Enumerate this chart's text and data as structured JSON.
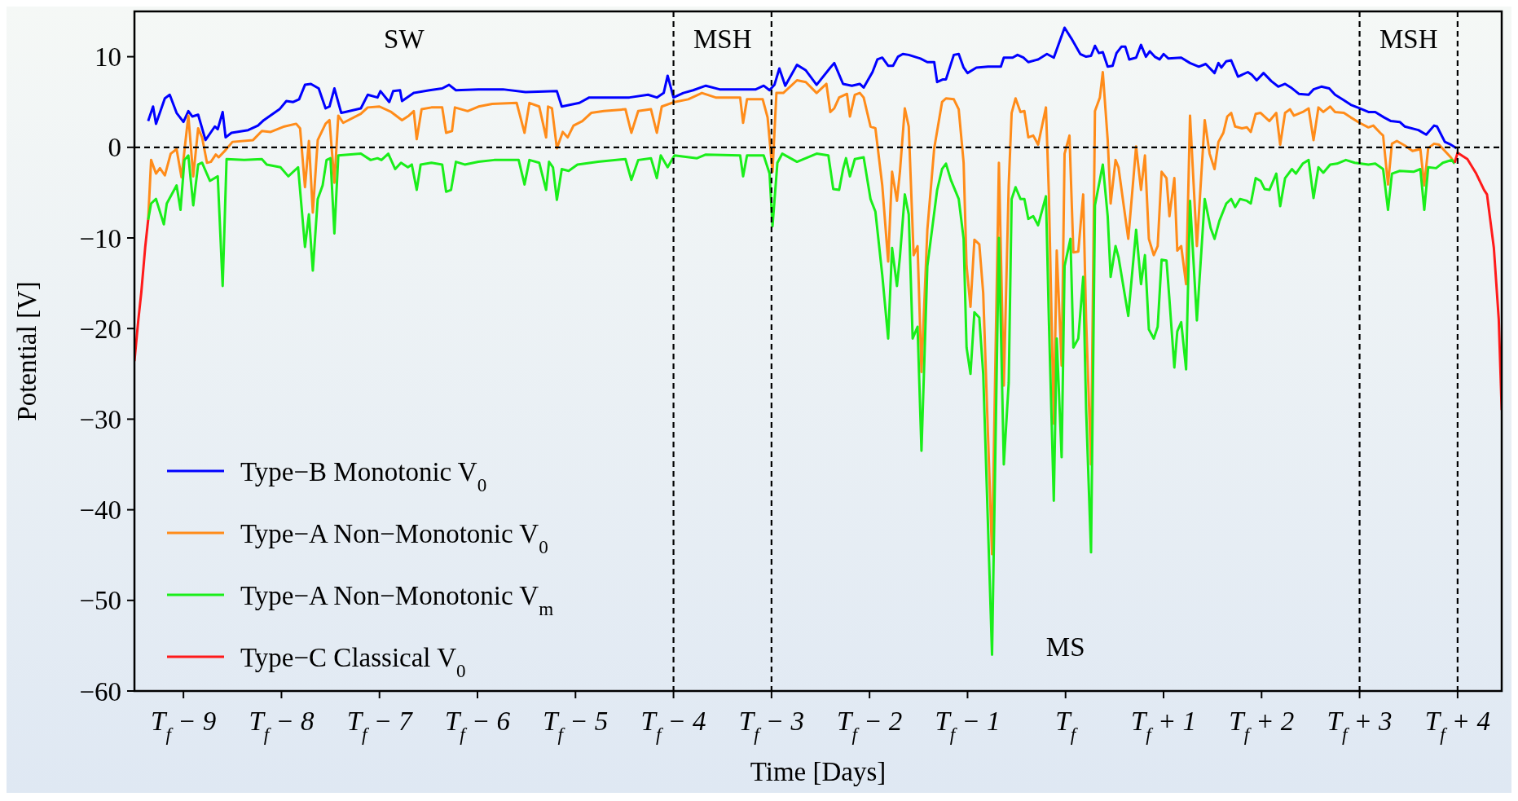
{
  "chart_data": {
    "type": "line",
    "xlabel": "Time [Days]",
    "ylabel": "Potential [V]",
    "xlim": [
      -9.5,
      4.45
    ],
    "ylim": [
      -60,
      15
    ],
    "xticks": [
      {
        "value": -9,
        "label": "T$_{f}$ − 9"
      },
      {
        "value": -8,
        "label": "T$_{f}$ − 8"
      },
      {
        "value": -7,
        "label": "T$_{f}$ − 7"
      },
      {
        "value": -6,
        "label": "T$_{f}$ − 6"
      },
      {
        "value": -5,
        "label": "T$_{f}$ − 5"
      },
      {
        "value": -4,
        "label": "T$_{f}$ − 4"
      },
      {
        "value": -3,
        "label": "T$_{f}$ − 3"
      },
      {
        "value": -2,
        "label": "T$_{f}$ − 2"
      },
      {
        "value": -1,
        "label": "T$_{f}$ − 1"
      },
      {
        "value": 0,
        "label": "T$_{f}$"
      },
      {
        "value": 1,
        "label": "T$_{f}$ + 1"
      },
      {
        "value": 2,
        "label": "T$_{f}$ + 2"
      },
      {
        "value": 3,
        "label": "T$_{f}$ + 3"
      },
      {
        "value": 4,
        "label": "T$_{f}$ + 4"
      }
    ],
    "yticks": [
      {
        "value": -60,
        "label": "−60"
      },
      {
        "value": -50,
        "label": "−50"
      },
      {
        "value": -40,
        "label": "−40"
      },
      {
        "value": -30,
        "label": "−30"
      },
      {
        "value": -20,
        "label": "−20"
      },
      {
        "value": -10,
        "label": "−10"
      },
      0,
      10
    ],
    "legend": "bottom left",
    "grid": false,
    "line_style": "solid",
    "marker": "none",
    "ref_lines": [
      {
        "axis": "y",
        "value": 0,
        "color": "#000000",
        "line_style": "dashed"
      },
      {
        "axis": "x",
        "value": -4,
        "color": "#000000",
        "line_style": "dashed"
      },
      {
        "axis": "x",
        "value": -3,
        "color": "#000000",
        "line_style": "dashed"
      },
      {
        "axis": "x",
        "value": 3,
        "color": "#000000",
        "line_style": "dashed"
      },
      {
        "axis": "x",
        "value": 4,
        "color": "#000000",
        "line_style": "dashed"
      }
    ],
    "annotations": [
      "SW",
      "MSH",
      "MS",
      "MSH"
    ],
    "series": [
      {
        "name": "Type−B Monotonic V$_{0}$",
        "color": "#0000ff",
        "x": [
          -9.36,
          -9.31,
          -9.28,
          -9.19,
          -9.14,
          -9.07,
          -9.0,
          -8.95,
          -8.91,
          -8.85,
          -8.775,
          -8.68,
          -8.65,
          -8.6,
          -8.57,
          -8.51,
          -8.34,
          -8.24,
          -8.18,
          -8.02,
          -7.95,
          -7.88,
          -7.82,
          -7.76,
          -7.7,
          -7.62,
          -7.55,
          -7.51,
          -7.46,
          -7.39,
          -7.35,
          -7.19,
          -7.12,
          -7.02,
          -6.99,
          -6.9,
          -6.86,
          -6.79,
          -6.77,
          -6.65,
          -6.49,
          -6.36,
          -6.29,
          -6.22,
          -5.99,
          -5.85,
          -5.74,
          -5.51,
          -5.19,
          -5.14,
          -5.05,
          -4.96,
          -4.86,
          -4.68,
          -4.45,
          -4.26,
          -4.17,
          -4.1,
          -4.06,
          -4.0,
          -3.9,
          -3.8,
          -3.67,
          -3.53,
          -3.3,
          -3.16,
          -3.08,
          -3.02,
          -2.97,
          -2.92,
          -2.86,
          -2.74,
          -2.65,
          -2.54,
          -2.4,
          -2.36,
          -2.27,
          -2.18,
          -2.1,
          -2.06,
          -1.97,
          -1.92,
          -1.87,
          -1.81,
          -1.76,
          -1.71,
          -1.66,
          -1.6,
          -1.48,
          -1.41,
          -1.34,
          -1.31,
          -1.25,
          -1.22,
          -1.14,
          -1.09,
          -1.04,
          -1.0,
          -0.91,
          -0.79,
          -0.66,
          -0.63,
          -0.54,
          -0.49,
          -0.43,
          -0.38,
          -0.28,
          -0.19,
          -0.12,
          -0.01,
          0.06,
          0.15,
          0.21,
          0.26,
          0.3,
          0.34,
          0.38,
          0.43,
          0.48,
          0.52,
          0.57,
          0.61,
          0.65,
          0.72,
          0.77,
          0.82,
          0.86,
          0.91,
          0.96,
          1.0,
          1.05,
          1.18,
          1.27,
          1.36,
          1.43,
          1.52,
          1.56,
          1.59,
          1.64,
          1.69,
          1.76,
          1.86,
          1.9,
          1.95,
          2.02,
          2.1,
          2.17,
          2.24,
          2.3,
          2.38,
          2.48,
          2.53,
          2.61,
          2.69,
          2.75,
          2.84,
          2.91,
          3.0,
          3.09,
          3.16,
          3.25,
          3.32,
          3.41,
          3.46,
          3.6,
          3.68,
          3.76,
          3.79,
          3.87,
          3.93,
          3.99
        ],
        "values": [
          2.9,
          4.5,
          2.6,
          5.4,
          5.8,
          3.8,
          2.8,
          4.0,
          3.4,
          3.6,
          0.8,
          2.3,
          2.0,
          3.9,
          1.1,
          1.6,
          1.9,
          2.4,
          3.0,
          4.2,
          5.1,
          5.0,
          5.3,
          6.9,
          7.0,
          6.5,
          4.3,
          4.5,
          6.5,
          3.8,
          3.9,
          4.3,
          5.8,
          5.5,
          6.2,
          5.0,
          6.2,
          6.3,
          5.1,
          6.0,
          6.3,
          6.5,
          6.9,
          6.3,
          6.4,
          6.4,
          6.4,
          6.1,
          6.2,
          4.5,
          4.7,
          4.9,
          5.5,
          5.5,
          5.5,
          5.8,
          5.5,
          6.0,
          7.9,
          5.5,
          6.0,
          6.3,
          6.8,
          6.4,
          6.4,
          6.4,
          6.8,
          6.3,
          6.9,
          8.7,
          6.8,
          9.1,
          8.5,
          6.9,
          8.8,
          9.3,
          7.0,
          6.8,
          7.0,
          6.6,
          8.3,
          9.7,
          9.9,
          9.0,
          9.0,
          10.0,
          10.3,
          10.2,
          9.8,
          9.4,
          9.4,
          7.2,
          7.5,
          7.5,
          10.2,
          10.3,
          8.8,
          8.2,
          8.8,
          8.9,
          8.9,
          9.9,
          9.9,
          10.2,
          9.9,
          9.4,
          9.7,
          10.3,
          9.9,
          13.2,
          12.0,
          10.3,
          10.0,
          10.1,
          11.2,
          10.4,
          10.5,
          8.9,
          9.0,
          10.4,
          11.1,
          11.1,
          9.7,
          9.9,
          11.3,
          10.0,
          10.6,
          10.0,
          9.7,
          10.3,
          9.8,
          9.9,
          9.3,
          8.9,
          9.2,
          8.2,
          9.3,
          8.8,
          9.5,
          9.6,
          7.8,
          8.3,
          8.0,
          7.4,
          8.2,
          7.3,
          6.7,
          7.0,
          6.6,
          5.9,
          5.8,
          6.4,
          6.7,
          6.5,
          5.8,
          5.2,
          4.7,
          4.3,
          3.9,
          3.9,
          3.3,
          2.9,
          2.8,
          2.3,
          1.9,
          1.4,
          2.4,
          2.3,
          0.6,
          0.3,
          -0.1
        ]
      },
      {
        "name": "Type−A Non−Monotonic V$_{0}$",
        "color": "#ff8c1a",
        "x": [
          -9.36,
          -9.33,
          -9.28,
          -9.24,
          -9.19,
          -9.13,
          -9.07,
          -9.02,
          -8.95,
          -8.9,
          -8.85,
          -8.81,
          -8.76,
          -8.72,
          -8.67,
          -8.64,
          -8.57,
          -8.5,
          -8.29,
          -8.2,
          -8.11,
          -7.97,
          -7.85,
          -7.81,
          -7.76,
          -7.72,
          -7.68,
          -7.63,
          -7.55,
          -7.51,
          -7.46,
          -7.42,
          -7.37,
          -7.19,
          -7.12,
          -7.0,
          -6.88,
          -6.77,
          -6.7,
          -6.65,
          -6.62,
          -6.57,
          -6.47,
          -6.36,
          -6.32,
          -6.26,
          -6.23,
          -6.1,
          -5.99,
          -5.85,
          -5.6,
          -5.52,
          -5.47,
          -5.37,
          -5.3,
          -5.28,
          -5.24,
          -5.19,
          -5.13,
          -5.08,
          -5.02,
          -4.93,
          -4.84,
          -4.71,
          -4.49,
          -4.43,
          -4.36,
          -4.23,
          -4.17,
          -4.12,
          -3.99,
          -3.85,
          -3.71,
          -3.57,
          -3.32,
          -3.29,
          -3.25,
          -3.09,
          -3.04,
          -2.99,
          -2.95,
          -2.88,
          -2.74,
          -2.65,
          -2.54,
          -2.44,
          -2.4,
          -2.36,
          -2.31,
          -2.23,
          -2.2,
          -2.15,
          -2.1,
          -2.06,
          -1.99,
          -1.94,
          -1.87,
          -1.81,
          -1.77,
          -1.72,
          -1.69,
          -1.64,
          -1.6,
          -1.55,
          -1.51,
          -1.47,
          -1.41,
          -1.34,
          -1.26,
          -1.22,
          -1.14,
          -1.09,
          -1.04,
          -1.01,
          -0.97,
          -0.93,
          -0.88,
          -0.84,
          -0.8,
          -0.75,
          -0.68,
          -0.63,
          -0.58,
          -0.55,
          -0.51,
          -0.46,
          -0.42,
          -0.38,
          -0.33,
          -0.28,
          -0.2,
          -0.17,
          -0.12,
          -0.09,
          -0.04,
          -0.01,
          0.04,
          0.08,
          0.13,
          0.18,
          0.21,
          0.26,
          0.3,
          0.35,
          0.38,
          0.43,
          0.46,
          0.51,
          0.54,
          0.64,
          0.72,
          0.77,
          0.81,
          0.85,
          0.9,
          0.94,
          0.98,
          1.03,
          1.06,
          1.11,
          1.14,
          1.18,
          1.23,
          1.27,
          1.34,
          1.42,
          1.47,
          1.52,
          1.56,
          1.61,
          1.65,
          1.69,
          1.73,
          1.8,
          1.85,
          1.89,
          1.94,
          1.99,
          2.08,
          2.15,
          2.19,
          2.24,
          2.29,
          2.33,
          2.42,
          2.48,
          2.53,
          2.58,
          2.63,
          2.7,
          2.75,
          2.84,
          2.91,
          3.0,
          3.09,
          3.14,
          3.21,
          3.24,
          3.29,
          3.33,
          3.38,
          3.46,
          3.54,
          3.62,
          3.66,
          3.7,
          3.76,
          3.81,
          3.87,
          3.93,
          3.97
        ],
        "values": [
          -8.0,
          -1.4,
          -2.9,
          -2.3,
          -3.1,
          -0.7,
          -0.2,
          -3.3,
          3.5,
          -3.2,
          2.1,
          1.1,
          -1.7,
          -1.6,
          -0.8,
          -1.1,
          -0.3,
          0.6,
          0.8,
          1.8,
          1.7,
          2.3,
          2.6,
          2.1,
          -4.4,
          0.7,
          -7.2,
          0.8,
          2.6,
          3.0,
          -3.9,
          3.5,
          2.7,
          3.7,
          4.4,
          4.5,
          3.9,
          3.0,
          3.5,
          4.0,
          0.9,
          4.2,
          4.4,
          4.4,
          1.6,
          1.8,
          4.4,
          4.0,
          4.5,
          4.8,
          4.9,
          1.6,
          4.9,
          4.5,
          1.1,
          4.5,
          4.3,
          -0.1,
          1.7,
          1.1,
          2.4,
          2.9,
          3.8,
          4.0,
          4.2,
          1.6,
          4.0,
          4.2,
          1.6,
          4.5,
          5.0,
          5.3,
          6.0,
          5.5,
          5.5,
          2.7,
          5.3,
          5.3,
          3.3,
          -2.7,
          6.0,
          6.0,
          7.4,
          7.2,
          6.0,
          7.0,
          3.9,
          4.3,
          5.5,
          5.9,
          3.4,
          5.8,
          6.0,
          5.5,
          2.3,
          2.1,
          -4.2,
          -12.6,
          -2.7,
          -5.9,
          -2.7,
          4.3,
          2.3,
          -11.9,
          -10.9,
          -24.8,
          -9.1,
          -0.1,
          5.0,
          5.4,
          5.3,
          4.2,
          -1.7,
          -13.1,
          -17.6,
          -10.2,
          -10.7,
          -16.1,
          -29.0,
          -44.9,
          -1.7,
          -26.3,
          -4.2,
          3.8,
          5.4,
          3.9,
          4.0,
          1.1,
          1.3,
          0.3,
          4.4,
          -5.2,
          -30.5,
          -11.4,
          -24.1,
          -0.7,
          1.3,
          -11.6,
          -11.5,
          -5.2,
          -19.1,
          -35.0,
          4.0,
          5.5,
          8.3,
          0.8,
          -6.2,
          -1.4,
          -2.2,
          -10.1,
          0.1,
          -4.7,
          -0.9,
          -10.1,
          -11.9,
          -10.9,
          -2.7,
          -3.4,
          -7.6,
          -3.4,
          -11.4,
          -10.9,
          -15.1,
          3.5,
          -10.9,
          3.0,
          -0.7,
          -2.4,
          0.6,
          1.6,
          3.4,
          3.8,
          2.3,
          2.1,
          2.2,
          1.7,
          3.7,
          3.8,
          2.9,
          3.8,
          0.3,
          3.8,
          4.2,
          3.5,
          3.9,
          4.3,
          0.8,
          4.4,
          3.9,
          4.5,
          3.9,
          3.8,
          3.3,
          2.7,
          2.2,
          2.4,
          1.6,
          1.3,
          -4.1,
          0.4,
          0.7,
          0.2,
          -0.4,
          -0.2,
          -4.2,
          -0.1,
          0.4,
          0.3,
          -0.4,
          -1.1,
          -1.7
        ]
      },
      {
        "name": "Type−A Non−Monotonic V$_{m}$",
        "color": "#1aee1a",
        "x": [
          -9.36,
          -9.33,
          -9.28,
          -9.2,
          -9.17,
          -9.07,
          -9.03,
          -8.99,
          -8.95,
          -8.9,
          -8.85,
          -8.81,
          -8.73,
          -8.65,
          -8.6,
          -8.56,
          -8.38,
          -8.2,
          -8.15,
          -8.01,
          -7.93,
          -7.83,
          -7.76,
          -7.72,
          -7.68,
          -7.63,
          -7.58,
          -7.54,
          -7.5,
          -7.46,
          -7.42,
          -7.19,
          -7.09,
          -7.02,
          -6.98,
          -6.91,
          -6.84,
          -6.78,
          -6.71,
          -6.67,
          -6.62,
          -6.58,
          -6.47,
          -6.36,
          -6.32,
          -6.27,
          -6.22,
          -6.13,
          -5.99,
          -5.83,
          -5.58,
          -5.52,
          -5.47,
          -5.37,
          -5.3,
          -5.27,
          -5.23,
          -5.19,
          -5.14,
          -5.07,
          -4.98,
          -4.77,
          -4.49,
          -4.43,
          -4.36,
          -4.23,
          -4.17,
          -4.13,
          -4.06,
          -3.99,
          -3.76,
          -3.67,
          -3.32,
          -3.29,
          -3.25,
          -3.08,
          -3.02,
          -2.99,
          -2.94,
          -2.89,
          -2.74,
          -2.54,
          -2.42,
          -2.37,
          -2.31,
          -2.27,
          -2.24,
          -2.2,
          -2.15,
          -2.06,
          -1.99,
          -1.94,
          -1.87,
          -1.81,
          -1.77,
          -1.72,
          -1.69,
          -1.64,
          -1.6,
          -1.56,
          -1.51,
          -1.47,
          -1.41,
          -1.31,
          -1.26,
          -1.22,
          -1.17,
          -1.09,
          -1.04,
          -1.01,
          -0.97,
          -0.93,
          -0.88,
          -0.84,
          -0.75,
          -0.68,
          -0.63,
          -0.58,
          -0.55,
          -0.51,
          -0.46,
          -0.42,
          -0.38,
          -0.33,
          -0.28,
          -0.2,
          -0.17,
          -0.12,
          -0.09,
          -0.04,
          -0.01,
          0.05,
          0.08,
          0.13,
          0.18,
          0.21,
          0.26,
          0.3,
          0.38,
          0.43,
          0.46,
          0.51,
          0.54,
          0.64,
          0.72,
          0.77,
          0.81,
          0.85,
          0.9,
          0.94,
          0.98,
          1.03,
          1.06,
          1.11,
          1.14,
          1.18,
          1.23,
          1.27,
          1.34,
          1.42,
          1.48,
          1.52,
          1.57,
          1.64,
          1.69,
          1.73,
          1.78,
          1.85,
          1.89,
          1.94,
          1.99,
          2.03,
          2.08,
          2.15,
          2.19,
          2.24,
          2.31,
          2.35,
          2.42,
          2.48,
          2.53,
          2.58,
          2.63,
          2.7,
          2.77,
          2.86,
          2.95,
          3.09,
          3.16,
          3.24,
          3.29,
          3.33,
          3.41,
          3.55,
          3.62,
          3.66,
          3.7,
          3.78,
          3.85,
          3.94,
          3.97
        ],
        "values": [
          -8.0,
          -6.2,
          -5.7,
          -8.5,
          -6.2,
          -4.2,
          -6.9,
          -1.4,
          -0.9,
          -6.4,
          -1.9,
          -1.7,
          -3.7,
          -3.2,
          -15.3,
          -1.3,
          -1.4,
          -1.3,
          -1.9,
          -2.2,
          -3.2,
          -2.2,
          -11.0,
          -7.4,
          -13.6,
          -5.7,
          -4.2,
          -1.4,
          -1.2,
          -9.5,
          -0.9,
          -0.7,
          -1.4,
          -1.2,
          -1.4,
          -0.7,
          -2.4,
          -1.7,
          -2.2,
          -1.9,
          -4.7,
          -1.9,
          -1.7,
          -1.9,
          -4.9,
          -4.7,
          -1.6,
          -1.9,
          -1.6,
          -1.4,
          -1.4,
          -4.1,
          -1.4,
          -1.7,
          -4.7,
          -1.6,
          -2.2,
          -5.8,
          -2.4,
          -2.6,
          -1.9,
          -1.6,
          -1.3,
          -3.6,
          -1.4,
          -1.2,
          -3.4,
          -0.9,
          -2.2,
          -0.9,
          -1.2,
          -0.8,
          -0.9,
          -3.2,
          -0.9,
          -0.9,
          -2.9,
          -8.7,
          -1.7,
          -0.7,
          -1.6,
          -0.7,
          -0.9,
          -4.6,
          -4.7,
          -2.4,
          -1.2,
          -3.2,
          -1.3,
          -1.1,
          -5.7,
          -7.1,
          -14.1,
          -21.1,
          -11.1,
          -15.3,
          -12.1,
          -5.2,
          -7.4,
          -21.1,
          -19.8,
          -33.5,
          -13.1,
          -4.7,
          -2.4,
          -1.8,
          -3.6,
          -5.7,
          -10.1,
          -22.1,
          -25.0,
          -18.2,
          -18.8,
          -25.0,
          -56.0,
          -10.0,
          -35.0,
          -26.0,
          -5.7,
          -4.4,
          -5.7,
          -5.7,
          -7.9,
          -7.6,
          -8.6,
          -5.4,
          -19.1,
          -39.0,
          -21.1,
          -34.2,
          -13.1,
          -10.1,
          -22.1,
          -21.1,
          -14.3,
          -29.0,
          -44.7,
          -6.4,
          -1.9,
          -7.6,
          -14.3,
          -10.9,
          -12.1,
          -18.6,
          -9.1,
          -15.1,
          -11.9,
          -20.1,
          -21.1,
          -19.8,
          -12.4,
          -12.5,
          -16.8,
          -24.3,
          -20.3,
          -19.3,
          -24.5,
          -5.9,
          -19.1,
          -5.7,
          -8.9,
          -10.1,
          -8.1,
          -6.2,
          -5.7,
          -6.6,
          -5.7,
          -5.9,
          -6.2,
          -3.4,
          -3.7,
          -4.6,
          -4.7,
          -2.9,
          -6.5,
          -3.4,
          -2.4,
          -2.9,
          -1.8,
          -1.4,
          -5.6,
          -2.2,
          -2.8,
          -1.9,
          -1.8,
          -1.4,
          -1.7,
          -1.9,
          -1.8,
          -2.4,
          -6.9,
          -2.9,
          -2.6,
          -2.7,
          -2.4,
          -6.9,
          -2.2,
          -2.3,
          -1.7,
          -1.4,
          -1.8
        ]
      },
      {
        "name": "Type−C Classical V$_{0}$",
        "color": "#ff1a1a",
        "x": [
          -9.5,
          -9.46,
          -9.43,
          -9.39,
          -9.36,
          0,
          3.97,
          4.0,
          4.1,
          4.19,
          4.27,
          4.3,
          4.37,
          4.42,
          4.45
        ],
        "values": [
          -23.6,
          -19,
          -16,
          -11,
          -8.0,
          null,
          -1.7,
          -0.6,
          -1.3,
          -2.9,
          -4.7,
          -5.2,
          -11.1,
          -19,
          -29
        ]
      }
    ]
  }
}
